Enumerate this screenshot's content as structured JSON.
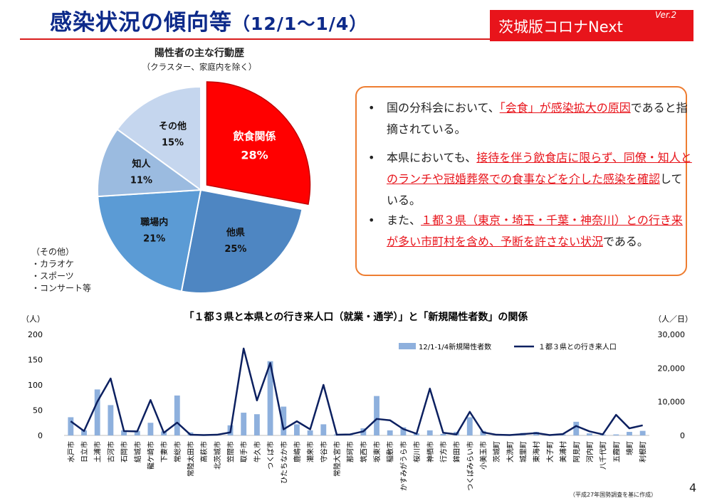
{
  "header": {
    "title_main": "感染状況の傾向等",
    "title_sub": "（12/1～1/4）",
    "brand": "茨城版コロナNext",
    "brand_version": "Ver.2",
    "brand_color": "#e8141b"
  },
  "chart_data": [
    {
      "type": "pie",
      "title": "陽性者の主な行動歴",
      "subtitle": "（クラスター、家庭内を除く）",
      "slices": [
        {
          "label": "飲食関係",
          "value": 28,
          "display": "28%",
          "color": "#ff0000"
        },
        {
          "label": "他県",
          "value": 25,
          "display": "25%",
          "color": "#4e86c2"
        },
        {
          "label": "職場内",
          "value": 21,
          "display": "21%",
          "color": "#5b9bd5"
        },
        {
          "label": "知人",
          "value": 11,
          "display": "11%",
          "color": "#9bbbe0"
        },
        {
          "label": "その他",
          "value": 15,
          "display": "15%",
          "color": "#c5d6ee"
        }
      ],
      "note_lines": [
        "（その他）",
        "・カラオケ",
        "・スポーツ",
        "・コンサート等"
      ]
    },
    {
      "type": "bar+line",
      "title": "「１都３県と本県との行き来人口（就業・通学）」と「新規陽性者数」の関係",
      "left_unit": "（人）",
      "right_unit": "（人／日）",
      "y_left_ticks": [
        "200",
        "150",
        "100",
        "50",
        "0"
      ],
      "y_right_ticks": [
        "30,000",
        "20,000",
        "10,000",
        "0"
      ],
      "ylim_left": [
        0,
        200
      ],
      "ylim_right": [
        0,
        30000
      ],
      "categories": [
        "水戸市",
        "日立市",
        "土浦市",
        "古河市",
        "石岡市",
        "結城市",
        "龍ケ崎市",
        "下妻市",
        "常総市",
        "常陸太田市",
        "高萩市",
        "北茨城市",
        "笠間市",
        "取手市",
        "牛久市",
        "つくば市",
        "ひたちなか市",
        "鹿嶋市",
        "潮来市",
        "守谷市",
        "常陸大宮市",
        "那珂市",
        "筑西市",
        "坂東市",
        "稲敷市",
        "かすみがうら市",
        "桜川市",
        "神栖市",
        "行方市",
        "鉾田市",
        "つくばみらい市",
        "小美玉市",
        "茨城町",
        "大洗町",
        "城里町",
        "東海村",
        "大子町",
        "美浦村",
        "阿見町",
        "河内町",
        "八千代町",
        "五霞町",
        "境町",
        "利根町"
      ],
      "series": [
        {
          "name": "12/1-1/4新規陽性者数",
          "type": "bar",
          "axis": "left",
          "color": "#8eb0dd",
          "values": [
            36,
            10,
            91,
            60,
            10,
            9,
            25,
            8,
            79,
            6,
            1,
            1,
            20,
            45,
            42,
            147,
            57,
            22,
            10,
            22,
            2,
            3,
            14,
            78,
            10,
            16,
            4,
            10,
            3,
            7,
            36,
            9,
            1,
            1,
            5,
            7,
            2,
            2,
            27,
            4,
            2,
            2,
            7,
            9
          ]
        },
        {
          "name": "１都３県との行き来人口",
          "type": "line",
          "axis": "right",
          "color": "#0c2060",
          "values": [
            4200,
            1300,
            10000,
            16900,
            1300,
            1200,
            10500,
            800,
            3800,
            200,
            100,
            200,
            900,
            25800,
            10400,
            21500,
            1800,
            4200,
            1800,
            15000,
            200,
            300,
            1200,
            4900,
            4500,
            1900,
            500,
            13900,
            800,
            300,
            7000,
            900,
            200,
            100,
            400,
            700,
            100,
            400,
            2800,
            1200,
            300,
            6100,
            2100,
            3000
          ]
        }
      ]
    }
  ],
  "callout": {
    "bullet_char": "•",
    "items": [
      {
        "segments": [
          {
            "text": "国の分科会において、",
            "em": false
          },
          {
            "text": "「会食」が感染拡大の原因",
            "em": true
          },
          {
            "text": "であると指摘されている。",
            "em": false
          }
        ]
      },
      {
        "segments": [
          {
            "text": "本県においても、",
            "em": false
          },
          {
            "text": "接待を伴う飲食店に限らず、同僚・知人とのランチや冠婚葬祭での食事などを介した感染を確認",
            "em": true
          },
          {
            "text": "している。",
            "em": false
          }
        ]
      },
      {
        "segments": [
          {
            "text": "また、",
            "em": false
          },
          {
            "text": "１都３県（東京・埼玉・千葉・神奈川）との行き来が多い市町村を含め、予断を許さない状況",
            "em": true
          },
          {
            "text": "である。",
            "em": false
          }
        ]
      }
    ],
    "border_color": "#ee7d31"
  },
  "footnote": "（平成27年国勢調査を基に作成）",
  "page_number": "4"
}
